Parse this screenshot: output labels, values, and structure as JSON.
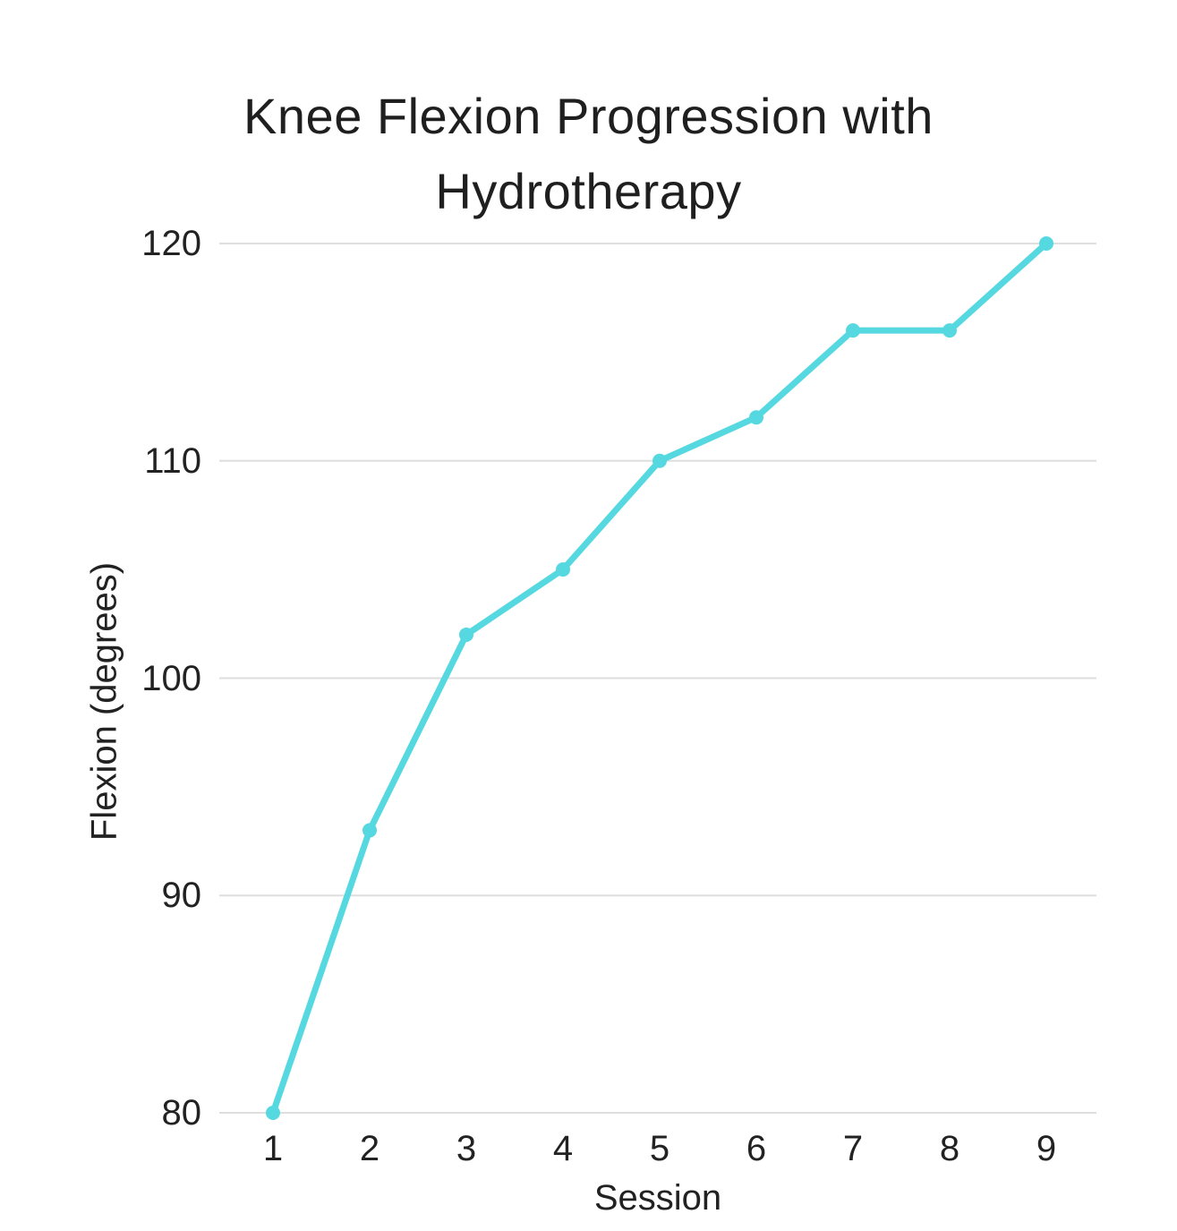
{
  "chart_data": {
    "type": "line",
    "title": "Knee Flexion Progression with Hydrotherapy",
    "xlabel": "Session",
    "ylabel": "Flexion (degrees)",
    "x": [
      1,
      2,
      3,
      4,
      5,
      6,
      7,
      8,
      9
    ],
    "values": [
      80,
      93,
      102,
      105,
      110,
      112,
      116,
      116,
      120
    ],
    "ylim": [
      80,
      120
    ],
    "y_ticks": [
      80,
      90,
      100,
      110,
      120
    ],
    "grid": "horizontal-only",
    "legend": "none",
    "marker": "circle",
    "line_color": "#55D8E0",
    "gridline_color": "#DEDEDE",
    "text_color": "#222222",
    "background_color": "#FFFFFF"
  }
}
